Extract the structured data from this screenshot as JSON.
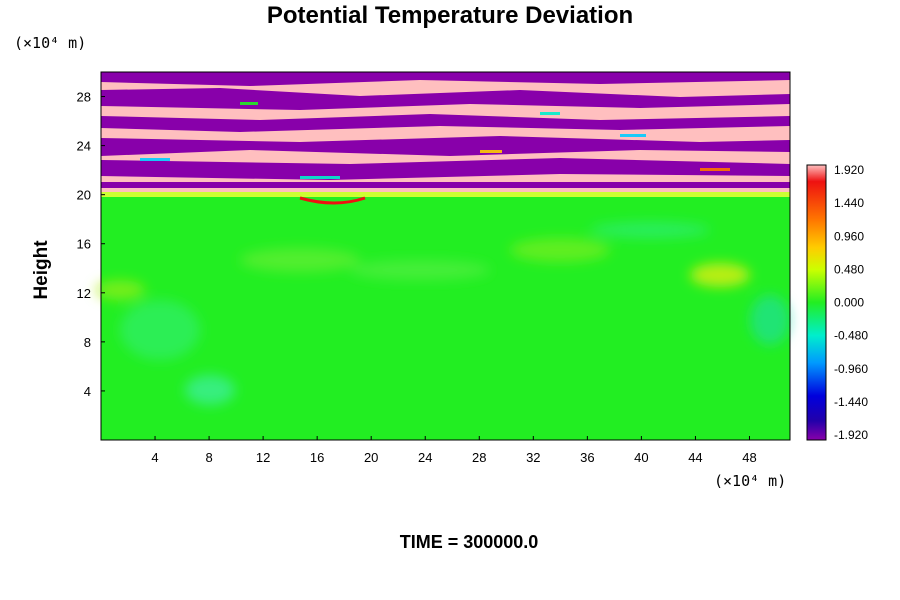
{
  "chart_data": {
    "type": "heatmap",
    "title": "Potential Temperature Deviation",
    "ylabel": "Height",
    "x_unit": "(×10⁴ m)",
    "y_unit": "(×10⁴ m)",
    "x_ticks": [
      4,
      8,
      12,
      16,
      20,
      24,
      28,
      32,
      36,
      40,
      44,
      48
    ],
    "y_ticks": [
      4,
      8,
      12,
      16,
      20,
      24,
      28
    ],
    "xlim": [
      0,
      51
    ],
    "ylim": [
      0,
      30
    ],
    "colorbar": {
      "range": [
        -1.92,
        1.92
      ],
      "ticks": [
        "1.920",
        "1.440",
        "0.960",
        "0.480",
        "0.000",
        "-0.480",
        "-0.960",
        "-1.440",
        "-1.920"
      ]
    },
    "colors": {
      "high": "#ffbfbf",
      "low": "#8800aa",
      "near_zero": "#22ee22"
    },
    "regions": [
      {
        "y_range": [
          0,
          20
        ],
        "description_value": 0.0
      },
      {
        "y_range": [
          20,
          30
        ],
        "description_value": "alternating bands of 1.920 and -1.920"
      }
    ],
    "annotation": "TIME = 300000.0"
  }
}
